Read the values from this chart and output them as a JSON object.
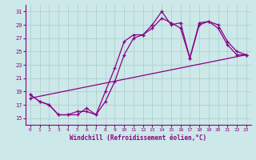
{
  "xlabel": "Windchill (Refroidissement éolien,°C)",
  "bg_color": "#cce8e8",
  "grid_color": "#aacccc",
  "line_color": "#880088",
  "xlim": [
    -0.5,
    23.5
  ],
  "ylim": [
    14,
    32
  ],
  "yticks": [
    15,
    17,
    19,
    21,
    23,
    25,
    27,
    29,
    31
  ],
  "xticks": [
    0,
    1,
    2,
    3,
    4,
    5,
    6,
    7,
    8,
    9,
    10,
    11,
    12,
    13,
    14,
    15,
    16,
    17,
    18,
    19,
    20,
    21,
    22,
    23
  ],
  "line1_x": [
    0,
    1,
    2,
    3,
    4,
    5,
    6,
    7,
    8,
    9,
    10,
    11,
    12,
    13,
    14,
    15,
    16,
    17,
    18,
    19,
    20,
    21,
    22,
    23
  ],
  "line1_y": [
    18.5,
    17.5,
    17.0,
    15.5,
    15.5,
    15.5,
    16.5,
    15.5,
    19.0,
    22.5,
    26.5,
    27.5,
    27.5,
    29.0,
    31.0,
    29.0,
    29.3,
    24.0,
    29.3,
    29.5,
    29.0,
    26.5,
    25.0,
    24.5
  ],
  "line2_x": [
    0,
    1,
    2,
    3,
    4,
    5,
    6,
    7,
    8,
    9,
    10,
    11,
    12,
    13,
    14,
    15,
    16,
    17,
    18,
    19,
    20,
    21,
    22,
    23
  ],
  "line2_y": [
    18.5,
    17.5,
    17.0,
    15.5,
    15.5,
    16.0,
    16.0,
    15.5,
    17.5,
    20.5,
    24.5,
    27.0,
    27.5,
    28.5,
    30.0,
    29.3,
    28.5,
    24.0,
    29.0,
    29.5,
    28.5,
    26.0,
    24.5,
    24.5
  ],
  "line3_x": [
    0,
    23
  ],
  "line3_y": [
    18.0,
    24.5
  ]
}
